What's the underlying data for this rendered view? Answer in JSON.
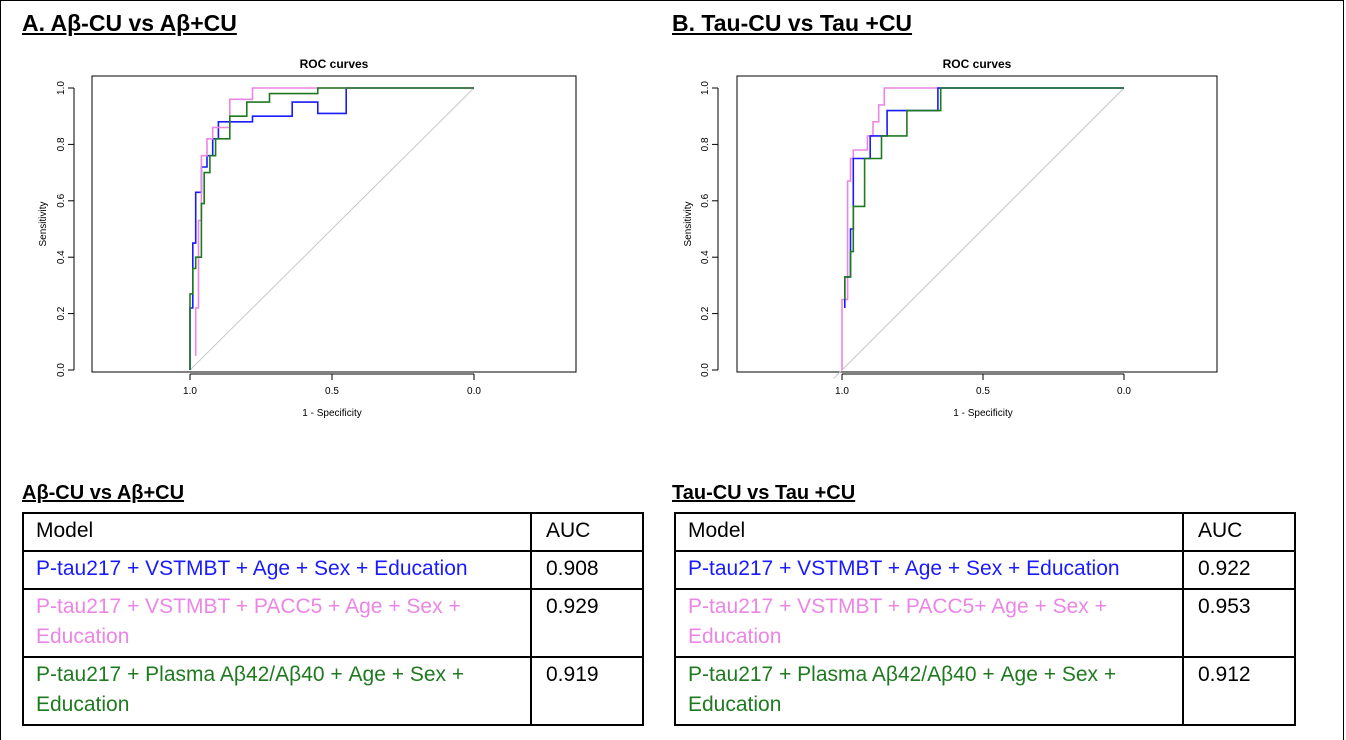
{
  "panels": [
    {
      "heading": "A. Aβ-CU vs Aβ+CU",
      "table_heading": "Aβ-CU vs Aβ+CU",
      "table": {
        "headers": [
          "Model",
          "AUC"
        ],
        "rows": [
          {
            "model": "P-tau217 + VSTMBT + Age + Sex + Education",
            "auc": "0.908",
            "color": "#1a1aff"
          },
          {
            "model": "P-tau217 + VSTMBT + PACC5 + Age + Sex + Education",
            "auc": "0.929",
            "color": "#ec86e6"
          },
          {
            "model": "P-tau217 + Plasma Aβ42/Aβ40 + Age + Sex + Education",
            "auc": "0.919",
            "color": "#1f7a1f"
          }
        ]
      }
    },
    {
      "heading": "B. Tau-CU vs Tau +CU",
      "table_heading": "Tau-CU vs Tau +CU",
      "table": {
        "headers": [
          "Model",
          "AUC"
        ],
        "rows": [
          {
            "model": "P-tau217 + VSTMBT + Age + Sex + Education",
            "auc": "0.922",
            "color": "#1a1aff"
          },
          {
            "model": "P-tau217 + VSTMBT + PACC5+ Age + Sex + Education",
            "auc": "0.953",
            "color": "#ec86e6"
          },
          {
            "model": "P-tau217 + Plasma Aβ42/Aβ40 + Age + Sex + Education",
            "auc": "0.912",
            "color": "#1f7a1f"
          }
        ]
      }
    }
  ],
  "chart_data": [
    {
      "type": "line",
      "title": "ROC curves",
      "xlabel": "1 - Specificity",
      "ylabel": "Sensitivity",
      "x_reversed": true,
      "xlim": [
        1.0,
        0.0
      ],
      "ylim": [
        0.0,
        1.0
      ],
      "xticks": [
        "1.0",
        "0.5",
        "0.0"
      ],
      "yticks": [
        "0.0",
        "0.2",
        "0.4",
        "0.6",
        "0.8",
        "1.0"
      ],
      "grid": false,
      "reference_line": true,
      "series": [
        {
          "color": "#1a1aff",
          "points": [
            [
              1.0,
              0.0
            ],
            [
              1.0,
              0.22
            ],
            [
              0.99,
              0.22
            ],
            [
              0.99,
              0.45
            ],
            [
              0.98,
              0.45
            ],
            [
              0.98,
              0.63
            ],
            [
              0.96,
              0.63
            ],
            [
              0.96,
              0.72
            ],
            [
              0.94,
              0.72
            ],
            [
              0.94,
              0.76
            ],
            [
              0.92,
              0.76
            ],
            [
              0.92,
              0.82
            ],
            [
              0.9,
              0.82
            ],
            [
              0.9,
              0.88
            ],
            [
              0.78,
              0.88
            ],
            [
              0.78,
              0.9
            ],
            [
              0.64,
              0.9
            ],
            [
              0.64,
              0.95
            ],
            [
              0.55,
              0.95
            ],
            [
              0.55,
              0.91
            ],
            [
              0.45,
              0.91
            ],
            [
              0.45,
              1.0
            ],
            [
              0.0,
              1.0
            ]
          ]
        },
        {
          "color": "#ec86e6",
          "points": [
            [
              0.98,
              0.05
            ],
            [
              0.98,
              0.22
            ],
            [
              0.97,
              0.22
            ],
            [
              0.97,
              0.53
            ],
            [
              0.96,
              0.53
            ],
            [
              0.96,
              0.76
            ],
            [
              0.94,
              0.76
            ],
            [
              0.94,
              0.82
            ],
            [
              0.92,
              0.82
            ],
            [
              0.92,
              0.86
            ],
            [
              0.9,
              0.86
            ],
            [
              0.9,
              0.86
            ],
            [
              0.86,
              0.86
            ],
            [
              0.86,
              0.96
            ],
            [
              0.78,
              0.96
            ],
            [
              0.78,
              1.0
            ],
            [
              0.62,
              1.0
            ],
            [
              0.62,
              1.0
            ],
            [
              0.0,
              1.0
            ]
          ]
        },
        {
          "color": "#1f7a1f",
          "points": [
            [
              1.0,
              0.0
            ],
            [
              1.0,
              0.27
            ],
            [
              0.99,
              0.27
            ],
            [
              0.99,
              0.36
            ],
            [
              0.98,
              0.36
            ],
            [
              0.98,
              0.4
            ],
            [
              0.96,
              0.4
            ],
            [
              0.96,
              0.59
            ],
            [
              0.95,
              0.59
            ],
            [
              0.95,
              0.7
            ],
            [
              0.93,
              0.7
            ],
            [
              0.93,
              0.76
            ],
            [
              0.91,
              0.76
            ],
            [
              0.91,
              0.82
            ],
            [
              0.86,
              0.82
            ],
            [
              0.86,
              0.9
            ],
            [
              0.8,
              0.9
            ],
            [
              0.8,
              0.95
            ],
            [
              0.72,
              0.95
            ],
            [
              0.72,
              0.98
            ],
            [
              0.55,
              0.98
            ],
            [
              0.55,
              1.0
            ],
            [
              0.0,
              1.0
            ]
          ]
        }
      ]
    },
    {
      "type": "line",
      "title": "ROC curves",
      "xlabel": "1 - Specificity",
      "ylabel": "Sensitivity",
      "x_reversed": true,
      "xlim": [
        1.0,
        0.0
      ],
      "ylim": [
        0.0,
        1.0
      ],
      "xticks": [
        "1.0",
        "0.5",
        "0.0"
      ],
      "yticks": [
        "0.0",
        "0.2",
        "0.4",
        "0.6",
        "0.8",
        "1.0"
      ],
      "grid": false,
      "reference_line": true,
      "series": [
        {
          "color": "#ec86e6",
          "points": [
            [
              1.0,
              0.0
            ],
            [
              1.0,
              0.25
            ],
            [
              0.98,
              0.25
            ],
            [
              0.98,
              0.67
            ],
            [
              0.97,
              0.67
            ],
            [
              0.97,
              0.75
            ],
            [
              0.96,
              0.75
            ],
            [
              0.96,
              0.78
            ],
            [
              0.91,
              0.78
            ],
            [
              0.91,
              0.83
            ],
            [
              0.89,
              0.83
            ],
            [
              0.89,
              0.88
            ],
            [
              0.87,
              0.88
            ],
            [
              0.87,
              0.94
            ],
            [
              0.85,
              0.94
            ],
            [
              0.85,
              1.0
            ],
            [
              0.0,
              1.0
            ]
          ]
        },
        {
          "color": "#1a1aff",
          "points": [
            [
              0.99,
              0.22
            ],
            [
              0.99,
              0.33
            ],
            [
              0.97,
              0.33
            ],
            [
              0.97,
              0.5
            ],
            [
              0.96,
              0.5
            ],
            [
              0.96,
              0.75
            ],
            [
              0.9,
              0.75
            ],
            [
              0.9,
              0.83
            ],
            [
              0.88,
              0.83
            ],
            [
              0.88,
              0.83
            ],
            [
              0.84,
              0.83
            ],
            [
              0.84,
              0.92
            ],
            [
              0.73,
              0.92
            ],
            [
              0.73,
              0.92
            ],
            [
              0.66,
              0.92
            ],
            [
              0.66,
              1.0
            ],
            [
              0.0,
              1.0
            ]
          ]
        },
        {
          "color": "#1f7a1f",
          "points": [
            [
              0.99,
              0.25
            ],
            [
              0.99,
              0.33
            ],
            [
              0.97,
              0.33
            ],
            [
              0.97,
              0.42
            ],
            [
              0.96,
              0.42
            ],
            [
              0.96,
              0.58
            ],
            [
              0.92,
              0.58
            ],
            [
              0.92,
              0.75
            ],
            [
              0.86,
              0.75
            ],
            [
              0.86,
              0.83
            ],
            [
              0.77,
              0.83
            ],
            [
              0.77,
              0.92
            ],
            [
              0.65,
              0.92
            ],
            [
              0.65,
              1.0
            ],
            [
              0.0,
              1.0
            ]
          ]
        }
      ]
    }
  ]
}
